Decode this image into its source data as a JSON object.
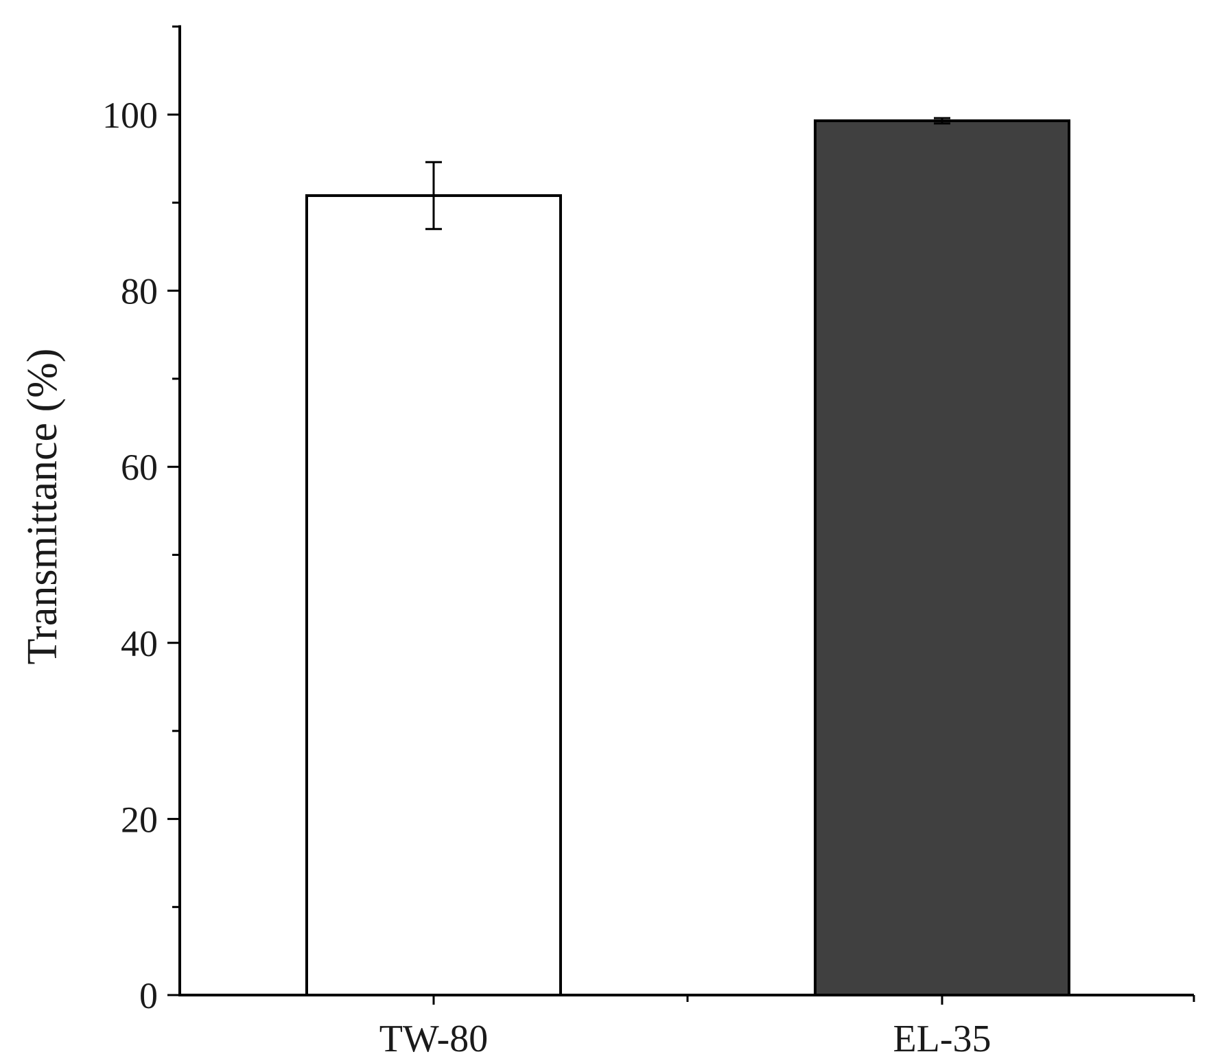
{
  "chart_data": {
    "type": "bar",
    "categories": [
      "TW-80",
      "EL-35"
    ],
    "values": [
      90.8,
      99.3
    ],
    "errors": [
      3.8,
      0.3
    ],
    "bar_colors": [
      "#ffffff",
      "#404040"
    ],
    "title": "",
    "xlabel": "",
    "ylabel": "Transmittance (%)",
    "ylim": [
      0,
      110
    ],
    "yticks": [
      0,
      20,
      40,
      60,
      80,
      100
    ],
    "yminor_step": 10,
    "grid": false,
    "legend": "none"
  }
}
